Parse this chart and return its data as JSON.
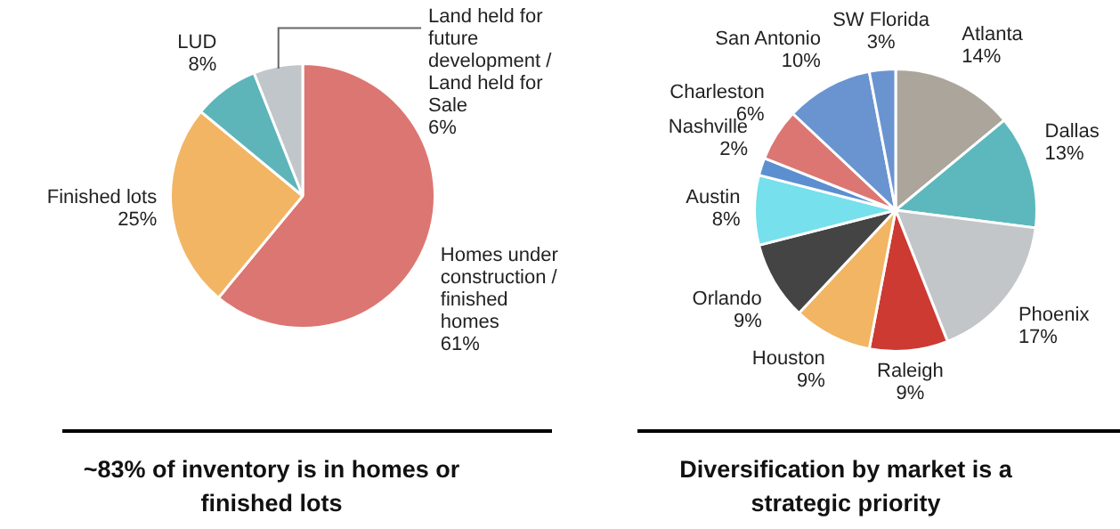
{
  "chart_data": [
    {
      "type": "pie",
      "title": "~83% of inventory is in homes or finished lots",
      "categories": [
        "Homes under construction / finished homes",
        "Finished lots",
        "LUD",
        "Land held for future development / Land held for Sale"
      ],
      "values": [
        61,
        25,
        8,
        6
      ],
      "colors": [
        "#dc7672",
        "#f2b563",
        "#5db5b9",
        "#c0c6c9"
      ],
      "value_labels": [
        "61%",
        "25%",
        "8%",
        "6%"
      ],
      "legend": false
    },
    {
      "type": "pie",
      "title": "Diversification by market is a strategic priority",
      "categories": [
        "Atlanta",
        "Dallas",
        "Phoenix",
        "Raleigh",
        "Houston",
        "Orlando",
        "Austin",
        "Nashville",
        "Charleston",
        "San Antonio",
        "SW Florida"
      ],
      "values": [
        14,
        13,
        17,
        9,
        9,
        9,
        8,
        2,
        6,
        10,
        3
      ],
      "colors": [
        "#aba59c",
        "#5cb8bc",
        "#c2c6c9",
        "#cc3a32",
        "#f2b563",
        "#444444",
        "#76e0ec",
        "#5c8fd0",
        "#dc7672",
        "#6a94d0",
        "#6a94d0"
      ],
      "value_labels": [
        "14%",
        "13%",
        "17%",
        "9%",
        "9%",
        "9%",
        "8%",
        "2%",
        "6%",
        "10%",
        "3%"
      ],
      "legend": false
    }
  ]
}
